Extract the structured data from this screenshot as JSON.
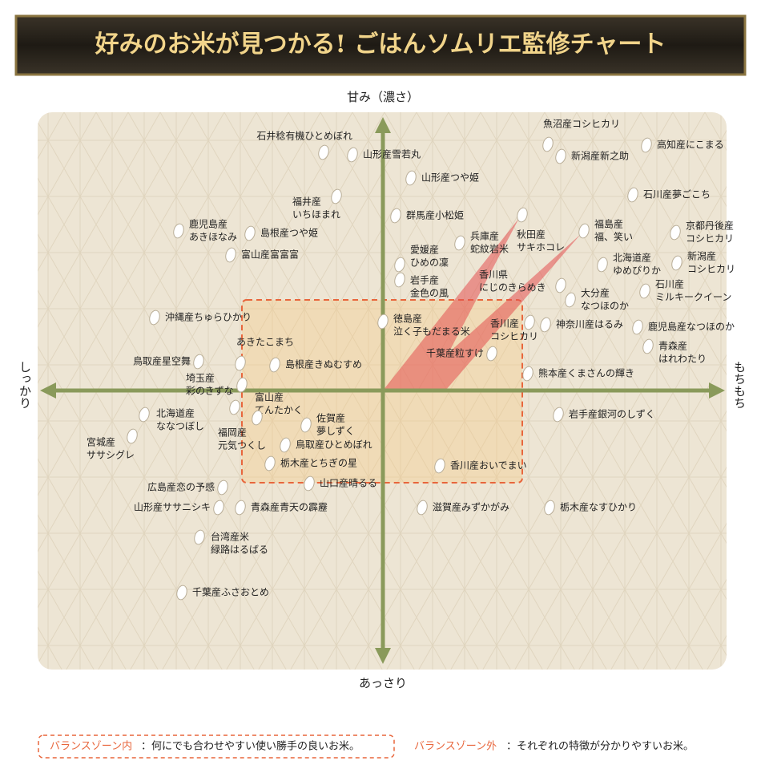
{
  "chart_data": {
    "type": "scatter",
    "title": "好みのお米が見つかる! ごはんソムリエ監修チャート",
    "y_label_top": "甘み（濃さ）",
    "y_label_bottom": "あっさり",
    "x_label_left": "しっかり",
    "x_label_right": "もちもち",
    "labels": [
      [
        "石井稔有機ひとめぼれ"
      ],
      [
        "山形産雪若丸"
      ],
      [
        "山形産つや姫"
      ],
      [
        "福井産",
        "いちほまれ"
      ],
      [
        "群馬産小松姫"
      ],
      [
        "魚沼産コシヒカリ"
      ],
      [
        "新潟産新之助"
      ],
      [
        "高知産にこまる"
      ],
      [
        "石川産夢ごこち"
      ],
      [
        "秋田産",
        "サキホコレ"
      ],
      [
        "福島産",
        "福、笑い"
      ],
      [
        "京都丹後産",
        "コシヒカリ"
      ],
      [
        "北海道産",
        "ゆめぴりか"
      ],
      [
        "新潟産",
        "コシヒカリ"
      ],
      [
        "兵庫産",
        "蛇紋岩米"
      ],
      [
        "鹿児島産",
        "あきほなみ"
      ],
      [
        "島根産つや姫"
      ],
      [
        "富山産富富富"
      ],
      [
        "愛媛産",
        "ひめの凜"
      ],
      [
        "岩手産",
        "金色の風"
      ],
      [
        "香川県",
        "にじのきらめき"
      ],
      [
        "大分産",
        "なつほのか"
      ],
      [
        "石川産",
        "ミルキークイーン"
      ],
      [
        "沖縄産ちゅらひかり"
      ],
      [
        "徳島産",
        "泣く子もだまる米"
      ],
      [
        "香川産",
        "コシヒカリ"
      ],
      [
        "神奈川産はるみ"
      ],
      [
        "鹿児島産なつほのか"
      ],
      [
        "青森産",
        "はれわたり"
      ],
      [
        "千葉産粒すけ"
      ],
      [
        "あきたこまち"
      ],
      [
        "島根産きぬむすめ"
      ],
      [
        "鳥取産星空舞"
      ],
      [
        "埼玉産",
        "彩のきずな"
      ],
      [
        "富山産",
        "てんたかく"
      ],
      [
        "福岡産",
        "元気つくし"
      ],
      [
        "佐賀産",
        "夢しずく"
      ],
      [
        "北海道産",
        "ななつぼし"
      ],
      [
        "宮城産",
        "ササシグレ"
      ],
      [
        "鳥取産ひとめぼれ"
      ],
      [
        "栃木産とちぎの星"
      ],
      [
        "山口産晴るる"
      ],
      [
        "香川産おいでまい"
      ],
      [
        "岩手産銀河のしずく"
      ],
      [
        "熊本産くまさんの輝き"
      ],
      [
        "広島産恋の予感"
      ],
      [
        "山形産ササニシキ"
      ],
      [
        "青森産青天の霹靂"
      ],
      [
        "滋賀産みずかがみ"
      ],
      [
        "栃木産なすひかり"
      ],
      [
        "台湾産米",
        "緑路はるばる"
      ],
      [
        "千葉産ふさおとめ"
      ]
    ],
    "x": [
      -74,
      -38,
      35,
      -58,
      16,
      206,
      222,
      329,
      312,
      174,
      251,
      365,
      274,
      367,
      96,
      -255,
      -166,
      -190,
      21,
      21,
      222,
      234,
      327,
      -285,
      0,
      183,
      203,
      318,
      331,
      136,
      -178,
      -135,
      -230,
      -176,
      -185,
      -157,
      -96,
      -298,
      -313,
      -122,
      -141,
      -92,
      71,
      219,
      181,
      -200,
      -205,
      -178,
      49,
      208,
      -229,
      -251
    ],
    "y": [
      297,
      294,
      265,
      242,
      218,
      307,
      292,
      306,
      244,
      219,
      199,
      197,
      157,
      159,
      184,
      199,
      196,
      169,
      157,
      138,
      131,
      113,
      124,
      91,
      86,
      85,
      82,
      79,
      55,
      46,
      34,
      32,
      36,
      7,
      -21,
      -34,
      -43,
      -30,
      -57,
      -68,
      -91,
      -116,
      -94,
      -30,
      21,
      -121,
      -146,
      -146,
      -146,
      -146,
      -183,
      -252
    ],
    "xlim": [
      -431,
      429
    ],
    "ylim": [
      -348,
      347
    ],
    "legend": {
      "inside_label": "バランスゾーン内",
      "inside_text": "：何にでも合わせやすい使い勝手の良いお米。",
      "outside_label": "バランスゾーン外",
      "outside_text": "：それぞれの特徴が分かりやすいお米。"
    }
  }
}
